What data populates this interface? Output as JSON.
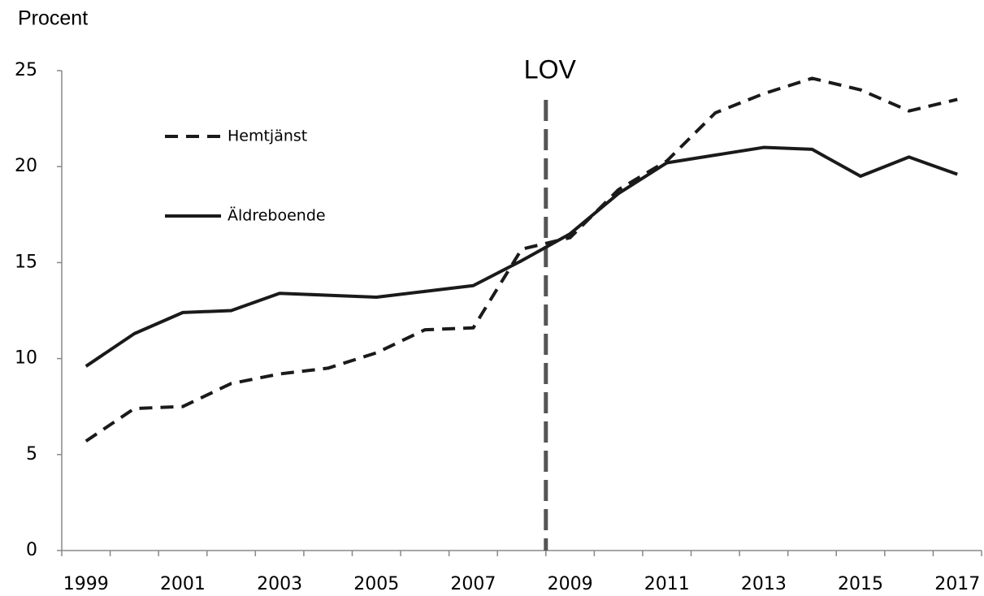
{
  "chart_data": {
    "type": "line",
    "y_label": "Procent",
    "categories": [
      "1999",
      null,
      "2001",
      null,
      "2003",
      null,
      "2005",
      null,
      "2007",
      null,
      "2009",
      null,
      "2011",
      null,
      "2013",
      null,
      "2015",
      null,
      "2017"
    ],
    "series": [
      {
        "name": "Hemtjänst",
        "color": "#1a1a1a",
        "dash": true,
        "values": [
          5.7,
          7.4,
          7.5,
          8.7,
          9.2,
          9.5,
          10.3,
          11.5,
          11.6,
          15.7,
          16.3,
          18.8,
          20.3,
          22.8,
          23.8,
          24.6,
          24.0,
          22.9,
          23.5
        ]
      },
      {
        "name": "Äldreboende",
        "color": "#1a1a1a",
        "dash": false,
        "values": [
          9.6,
          11.3,
          12.4,
          12.5,
          13.4,
          13.3,
          13.2,
          13.5,
          13.8,
          15.1,
          16.5,
          18.6,
          20.2,
          20.6,
          21.0,
          20.9,
          19.5,
          20.5,
          19.6
        ]
      }
    ],
    "annotation": {
      "text": "LOV",
      "category_index": 10,
      "color": "#555555"
    },
    "ylim": [
      0,
      25
    ],
    "yticks": [
      0,
      5,
      10,
      15,
      20,
      25
    ],
    "grid": false,
    "legend": "upper left"
  }
}
